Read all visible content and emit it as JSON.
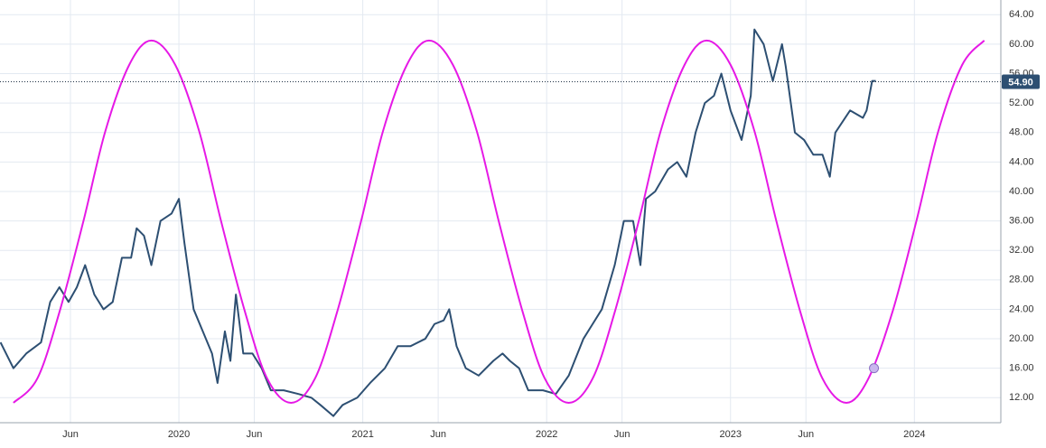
{
  "chart_data": {
    "type": "line",
    "xlim": [
      2019.027,
      2024.47
    ],
    "ylim": [
      8.6,
      66
    ],
    "grid": true,
    "xticks": [
      {
        "value": 2019.41,
        "label": "Jun"
      },
      {
        "value": 2020,
        "label": "2020"
      },
      {
        "value": 2020.41,
        "label": "Jun"
      },
      {
        "value": 2021,
        "label": "2021"
      },
      {
        "value": 2021.41,
        "label": "Jun"
      },
      {
        "value": 2022,
        "label": "2022"
      },
      {
        "value": 2022.41,
        "label": "Jun"
      },
      {
        "value": 2023,
        "label": "2023"
      },
      {
        "value": 2023.41,
        "label": "Jun"
      },
      {
        "value": 2024,
        "label": "2024"
      }
    ],
    "yticks": [
      {
        "value": 12,
        "label": "12.00"
      },
      {
        "value": 16,
        "label": "16.00"
      },
      {
        "value": 20,
        "label": "20.00"
      },
      {
        "value": 24,
        "label": "24.00"
      },
      {
        "value": 28,
        "label": "28.00"
      },
      {
        "value": 32,
        "label": "32.00"
      },
      {
        "value": 36,
        "label": "36.00"
      },
      {
        "value": 40,
        "label": "40.00"
      },
      {
        "value": 44,
        "label": "44.00"
      },
      {
        "value": 48,
        "label": "48.00"
      },
      {
        "value": 52,
        "label": "52.00"
      },
      {
        "value": 56,
        "label": "56.00"
      },
      {
        "value": 60,
        "label": "60.00"
      },
      {
        "value": 64,
        "label": "64.00"
      }
    ],
    "series": [
      {
        "color": "#2d4f72",
        "x": [
          2019.03,
          2019.1,
          2019.17,
          2019.25,
          2019.3,
          2019.35,
          2019.4,
          2019.445,
          2019.49,
          2019.54,
          2019.59,
          2019.64,
          2019.69,
          2019.74,
          2019.77,
          2019.81,
          2019.85,
          2019.9,
          2019.96,
          2020.0,
          2020.03,
          2020.08,
          2020.13,
          2020.18,
          2020.21,
          2020.25,
          2020.28,
          2020.31,
          2020.35,
          2020.4,
          2020.45,
          2020.5,
          2020.57,
          2020.65,
          2020.72,
          2020.77,
          2020.84,
          2020.89,
          2020.97,
          2021.04,
          2021.12,
          2021.19,
          2021.26,
          2021.34,
          2021.39,
          2021.44,
          2021.47,
          2021.51,
          2021.56,
          2021.63,
          2021.71,
          2021.76,
          2021.8,
          2021.85,
          2021.9,
          2021.98,
          2022.05,
          2022.12,
          2022.2,
          2022.25,
          2022.3,
          2022.37,
          2022.42,
          2022.47,
          2022.51,
          2022.54,
          2022.59,
          2022.66,
          2022.71,
          2022.76,
          2022.81,
          2022.86,
          2022.91,
          2022.95,
          2023.0,
          2023.06,
          2023.11,
          2023.13,
          2023.18,
          2023.23,
          2023.28,
          2023.3,
          2023.35,
          2023.4,
          2023.45,
          2023.5,
          2023.54,
          2023.57,
          2023.65,
          2023.72,
          2023.74,
          2023.77,
          2023.79
        ],
        "values": [
          19.5,
          16,
          18,
          19.5,
          25,
          27,
          25,
          27,
          30,
          26,
          24,
          25,
          31,
          31,
          35,
          34,
          30,
          36,
          37,
          39,
          33,
          24,
          21,
          18,
          14,
          21,
          17,
          26,
          18,
          18,
          16,
          13,
          13,
          12.5,
          12,
          11,
          9.5,
          11,
          12,
          14,
          16,
          19,
          19,
          20,
          22,
          22.5,
          24,
          19,
          16,
          15,
          17,
          18,
          17,
          16,
          13,
          13,
          12.5,
          15,
          20,
          22,
          24,
          30,
          36,
          36,
          30,
          39,
          40,
          43,
          44,
          42,
          48,
          52,
          53,
          56,
          51,
          47,
          53,
          62,
          60,
          55,
          60,
          57,
          48,
          47,
          45,
          45,
          42,
          48,
          51,
          50,
          51,
          55,
          55
        ]
      },
      {
        "color": "#e619e6",
        "x": [
          2019.1,
          2019.23,
          2019.35,
          2019.48,
          2019.6,
          2019.73,
          2019.85,
          2019.98,
          2020.11,
          2020.23,
          2020.36,
          2020.48,
          2020.61,
          2020.74,
          2020.86,
          2020.99,
          2021.11,
          2021.24,
          2021.36,
          2021.49,
          2021.62,
          2021.74,
          2021.87,
          2021.99,
          2022.12,
          2022.25,
          2022.37,
          2022.5,
          2022.62,
          2022.75,
          2022.87,
          2023.0,
          2023.13,
          2023.25,
          2023.38,
          2023.5,
          2023.63,
          2023.75,
          2023.88,
          2024.01,
          2024.13,
          2024.26,
          2024.38
        ],
        "values": [
          11.3,
          14.6,
          23.6,
          35.9,
          48.2,
          57.2,
          60.5,
          57.2,
          48.2,
          35.9,
          23.6,
          14.6,
          11.3,
          14.6,
          23.6,
          35.9,
          48.2,
          57.2,
          60.5,
          57.2,
          48.2,
          35.9,
          23.6,
          14.6,
          11.3,
          14.6,
          23.6,
          35.9,
          48.2,
          57.2,
          60.5,
          57.2,
          48.2,
          35.9,
          23.6,
          14.6,
          11.3,
          14.6,
          23.6,
          35.9,
          48.2,
          57.2,
          60.5
        ]
      }
    ],
    "marker": {
      "x": 2023.78,
      "value": 16,
      "color": "#c9b6ee"
    },
    "last_price": {
      "value": 54.9,
      "label": "54.90",
      "color": "#2d4f72"
    }
  }
}
